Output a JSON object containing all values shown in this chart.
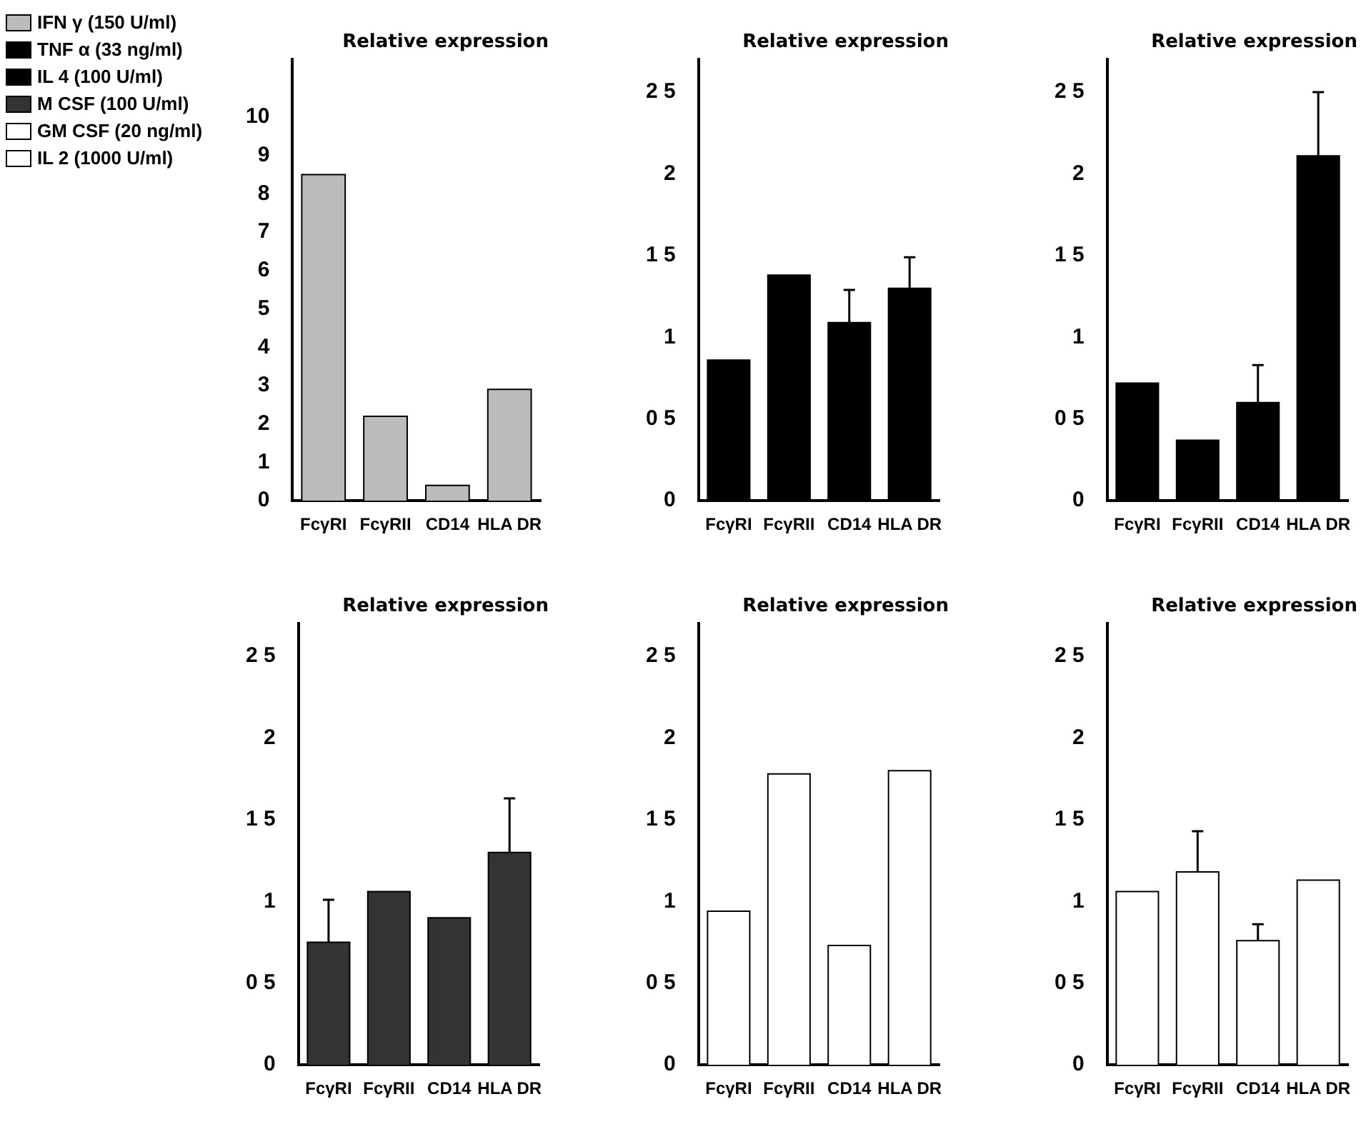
{
  "chart_data": [
    {
      "type": "bar",
      "title": "Relative expression",
      "categories": [
        "FcγRI",
        "FcγRII",
        "CD14",
        "HLA DR"
      ],
      "legend": "left",
      "series": [
        {
          "name": "IFN γ (150 U/ml)",
          "color": "#bbbbbb",
          "values": [
            8.5,
            2.2,
            0.4,
            2.9
          ]
        }
      ],
      "ylim": [
        0,
        11.5
      ],
      "yticks": [
        0,
        1,
        2,
        3,
        4,
        5,
        6,
        7,
        8,
        9,
        10
      ],
      "grid": false
    },
    {
      "type": "bar",
      "title": "Relative expression",
      "categories": [
        "FcγRI",
        "FcγRII",
        "CD14",
        "HLA DR"
      ],
      "series": [
        {
          "name": "TNF α (33 ng/ml)",
          "color": "#000000",
          "values": [
            0.86,
            1.38,
            1.09,
            1.3
          ],
          "errors": [
            null,
            null,
            [
              1.09,
              1.29
            ],
            [
              1.3,
              1.49
            ]
          ]
        }
      ],
      "ylim": [
        0,
        2.7
      ],
      "yticks": [
        0,
        {
          "value": 0.5,
          "label": "0 5"
        },
        1,
        {
          "value": 1.5,
          "label": "1 5"
        },
        2,
        {
          "value": 2.5,
          "label": "2 5"
        }
      ],
      "grid": false
    },
    {
      "type": "bar",
      "title": "Relative expression",
      "categories": [
        "FcγRI",
        "FcγRII",
        "CD14",
        "HLA DR"
      ],
      "series": [
        {
          "name": "IL 4 (100 U/ml)",
          "color": "#000000",
          "values": [
            0.72,
            0.37,
            0.6,
            2.11
          ],
          "errors": [
            null,
            null,
            [
              0.6,
              0.83
            ],
            [
              2.11,
              2.5
            ]
          ]
        }
      ],
      "ylim": [
        0,
        2.7
      ],
      "yticks": [
        0,
        {
          "value": 0.5,
          "label": "0 5"
        },
        1,
        {
          "value": 1.5,
          "label": "1 5"
        },
        2,
        {
          "value": 2.5,
          "label": "2 5"
        }
      ],
      "grid": false
    },
    {
      "type": "bar",
      "title": "Relative expression",
      "categories": [
        "FcγRI",
        "FcγRII",
        "CD14",
        "HLA DR"
      ],
      "series": [
        {
          "name": "M CSF (100 U/ml)",
          "color": "#333333",
          "values": [
            0.75,
            1.06,
            0.9,
            1.3
          ],
          "errors": [
            [
              0.75,
              1.01
            ],
            null,
            null,
            [
              1.3,
              1.63
            ]
          ]
        }
      ],
      "ylim": [
        0,
        2.7
      ],
      "yticks": [
        0,
        {
          "value": 0.5,
          "label": "0 5"
        },
        1,
        {
          "value": 1.5,
          "label": "1 5"
        },
        2,
        {
          "value": 2.5,
          "label": "2 5"
        }
      ],
      "grid": false
    },
    {
      "type": "bar",
      "title": "Relative expression",
      "categories": [
        "FcγRI",
        "FcγRII",
        "CD14",
        "HLA DR"
      ],
      "series": [
        {
          "name": "GM CSF (20 ng/ml)",
          "color": "#ffffff",
          "values": [
            0.94,
            1.78,
            0.73,
            1.8
          ]
        }
      ],
      "ylim": [
        0,
        2.7
      ],
      "yticks": [
        0,
        {
          "value": 0.5,
          "label": "0 5"
        },
        1,
        {
          "value": 1.5,
          "label": "1 5"
        },
        2,
        {
          "value": 2.5,
          "label": "2 5"
        }
      ],
      "grid": false
    },
    {
      "type": "bar",
      "title": "Relative expression",
      "categories": [
        "FcγRI",
        "FcγRII",
        "CD14",
        "HLA DR"
      ],
      "series": [
        {
          "name": "IL 2 (1000 U/ml)",
          "color": "#ffffff",
          "values": [
            1.06,
            1.18,
            0.76,
            1.13
          ],
          "errors": [
            null,
            [
              1.18,
              1.43
            ],
            [
              0.76,
              0.86
            ],
            null
          ]
        }
      ],
      "ylim": [
        0,
        2.7
      ],
      "yticks": [
        0,
        {
          "value": 0.5,
          "label": "0 5"
        },
        1,
        {
          "value": 1.5,
          "label": "1 5"
        },
        2,
        {
          "value": 2.5,
          "label": "2 5"
        }
      ],
      "grid": false
    }
  ]
}
